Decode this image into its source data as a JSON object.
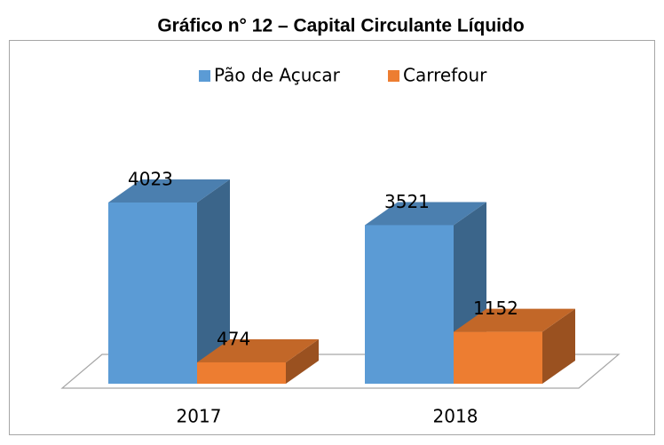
{
  "chart_data": {
    "type": "bar3d",
    "title": "Gráfico n° 12 – Capital Circulante Líquido",
    "categories": [
      "2017",
      "2018"
    ],
    "series": [
      {
        "name": "Pão de Açucar",
        "color": "#5b9bd5",
        "values": [
          4023,
          3521
        ]
      },
      {
        "name": "Carrefour",
        "color": "#ed7d31",
        "values": [
          474,
          1152
        ]
      }
    ]
  }
}
